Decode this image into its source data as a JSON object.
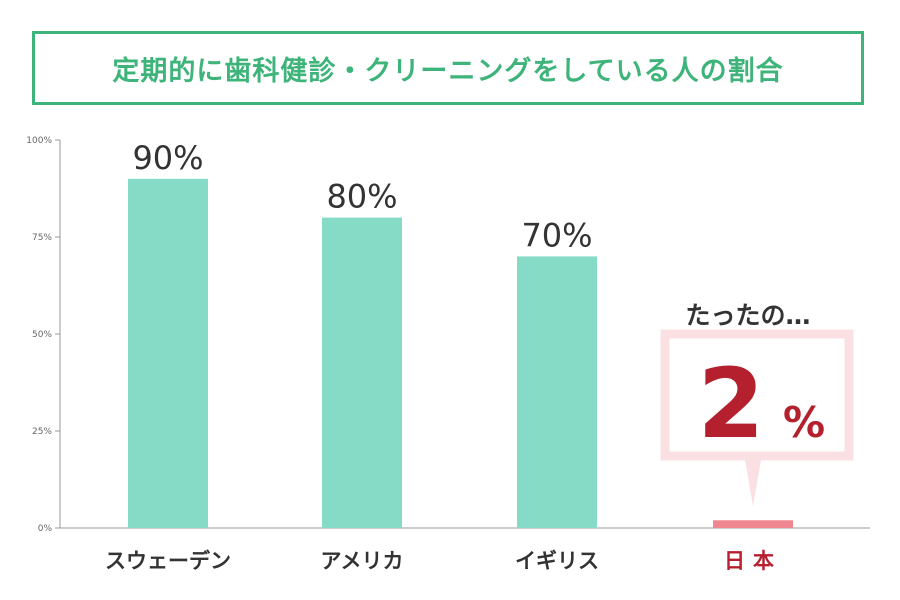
{
  "title": "定期的に歯科健診・クリーニングをしている人の割合",
  "chart_data": {
    "type": "bar",
    "title": "定期的に歯科健診・クリーニングをしている人の割合",
    "categories": [
      "スウェーデン",
      "アメリカ",
      "イギリス",
      "日本"
    ],
    "values": [
      90,
      80,
      70,
      2
    ],
    "value_labels": [
      "90%",
      "80%",
      "70%",
      "2"
    ],
    "value_unit": "%",
    "ylim": [
      0,
      100
    ],
    "yticks": [
      0,
      25,
      50,
      75,
      100
    ],
    "ytick_labels": [
      "0%",
      "25%",
      "50%",
      "75%",
      "100%"
    ],
    "grid": false,
    "highlight_category": "日本",
    "callout": {
      "lead": "たったの…",
      "value": "2",
      "unit": "%"
    },
    "colors": {
      "bar": "#85dbc5",
      "highlight_bar": "#ee8790",
      "highlight_text": "#b5202e",
      "callout_border": "#fbe0e3",
      "title": "#3fb47a",
      "text": "#333333",
      "axis": "#999999"
    }
  }
}
